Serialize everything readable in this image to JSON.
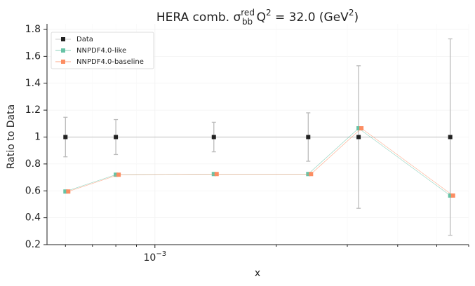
{
  "chart_data": {
    "type": "errorbar-line",
    "title": [
      "HERA comb. σ",
      "red",
      "bb",
      " Q",
      "2",
      " = 32.0 (GeV",
      "2",
      ")"
    ],
    "x_label": "x",
    "y_label": "Ratio to Data",
    "x": [
      0.0006,
      0.0008,
      0.0014,
      0.0024,
      0.0032,
      0.0054
    ],
    "xlim": [
      0.00054,
      0.006
    ],
    "x_log": true,
    "xticks": [
      {
        "value": 0.001,
        "label": [
          "10",
          "−3"
        ]
      }
    ],
    "ylim": [
      0.2,
      1.8
    ],
    "yticks": [
      0.2,
      0.4,
      0.6,
      0.8,
      1.0,
      1.2,
      1.4,
      1.6,
      1.8
    ],
    "grid": true,
    "legend": "upper-left",
    "series": [
      {
        "name": "Data",
        "color": "#222222",
        "line_color": "#bbbbbb",
        "values": [
          1.0,
          1.0,
          1.0,
          1.0,
          1.0,
          1.0
        ],
        "errors": [
          0.147,
          0.13,
          0.11,
          0.18,
          0.53,
          0.73
        ]
      },
      {
        "name": "NNPDF4.0-like",
        "color": "#66c2a5",
        "values": [
          0.595,
          0.72,
          0.725,
          0.725,
          1.065,
          0.565
        ]
      },
      {
        "name": "NNPDF4.0-baseline",
        "color": "#fc8d62",
        "values": [
          0.595,
          0.72,
          0.725,
          0.725,
          1.065,
          0.565
        ]
      }
    ]
  }
}
